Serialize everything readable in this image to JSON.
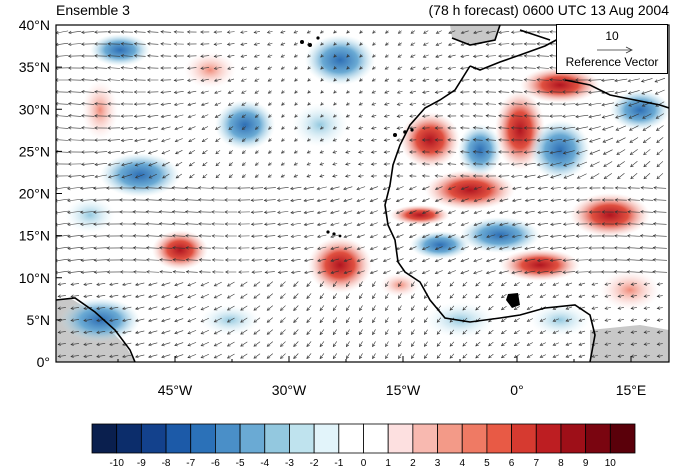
{
  "header": {
    "left_title": "Ensemble 3",
    "right_title": "(78 h forecast) 0600 UTC 13 Aug 2004"
  },
  "reference_vector": {
    "magnitude": "10",
    "label": "Reference Vector"
  },
  "axes": {
    "lat_labels": [
      "40°N",
      "35°N",
      "30°N",
      "25°N",
      "20°N",
      "15°N",
      "10°N",
      "5°N",
      "0°"
    ],
    "lon_labels": [
      "45°W",
      "30°W",
      "15°W",
      "0°",
      "15°E"
    ]
  },
  "colorbar": {
    "labels": [
      "-10",
      "-9",
      "-8",
      "-7",
      "-6",
      "-5",
      "-4",
      "-3",
      "-2",
      "-1",
      "0",
      "1",
      "2",
      "3",
      "4",
      "5",
      "6",
      "7",
      "8",
      "9",
      "10"
    ],
    "colors": [
      "#0a1f4e",
      "#0c2d6b",
      "#13418c",
      "#1c5aa8",
      "#2b71b8",
      "#4a8fc8",
      "#6aaad4",
      "#93c8df",
      "#bfe3ee",
      "#e2f4fa",
      "#ffffff",
      "#ffffff",
      "#fde0e0",
      "#f8b9b0",
      "#f39a88",
      "#ef7a64",
      "#e85a45",
      "#d63a30",
      "#bd1e22",
      "#9e0f18",
      "#7a0510",
      "#5a000a"
    ]
  },
  "colors": {
    "land_mask": "#c8c8c8",
    "coast": "#000000",
    "vector": "#333333"
  }
}
